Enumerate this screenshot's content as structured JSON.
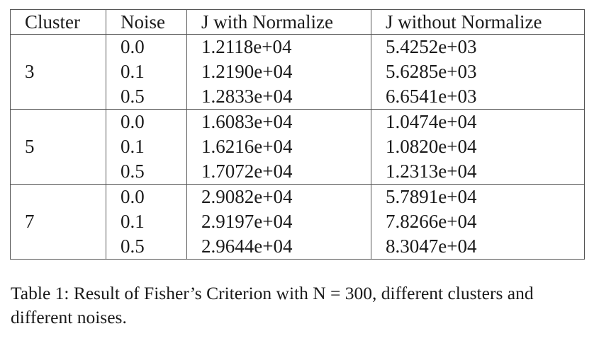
{
  "table": {
    "headers": [
      "Cluster",
      "Noise",
      "J with Normalize",
      "J without Normalize"
    ],
    "groups": [
      {
        "cluster": "3",
        "rows": [
          {
            "noise": "0.0",
            "j_norm": "1.2118e+04",
            "j_wo": "5.4252e+03"
          },
          {
            "noise": "0.1",
            "j_norm": "1.2190e+04",
            "j_wo": "5.6285e+03"
          },
          {
            "noise": "0.5",
            "j_norm": "1.2833e+04",
            "j_wo": "6.6541e+03"
          }
        ]
      },
      {
        "cluster": "5",
        "rows": [
          {
            "noise": "0.0",
            "j_norm": "1.6083e+04",
            "j_wo": "1.0474e+04"
          },
          {
            "noise": "0.1",
            "j_norm": "1.6216e+04",
            "j_wo": "1.0820e+04"
          },
          {
            "noise": "0.5",
            "j_norm": "1.7072e+04",
            "j_wo": "1.2313e+04"
          }
        ]
      },
      {
        "cluster": "7",
        "rows": [
          {
            "noise": "0.0",
            "j_norm": "2.9082e+04",
            "j_wo": "5.7891e+04"
          },
          {
            "noise": "0.1",
            "j_norm": "2.9197e+04",
            "j_wo": "7.8266e+04"
          },
          {
            "noise": "0.5",
            "j_norm": "2.9644e+04",
            "j_wo": "8.3047e+04"
          }
        ]
      }
    ]
  },
  "caption": "Table 1: Result of Fisher’s Criterion with N = 300, different clusters and different noises."
}
